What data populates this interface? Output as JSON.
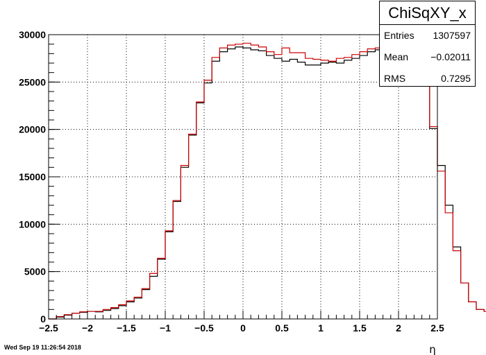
{
  "chart_data": {
    "type": "histogram",
    "title": "",
    "xlabel": "η",
    "ylabel": "",
    "xlim": [
      -2.5,
      2.5
    ],
    "ylim": [
      0,
      30000
    ],
    "grid": true,
    "bin_width": 0.1,
    "x_ticks": [
      "−2.5",
      "−2",
      "−1.5",
      "−1",
      "−0.5",
      "0",
      "0.5",
      "1",
      "1.5",
      "2",
      "2.5"
    ],
    "y_ticks": [
      "0",
      "5000",
      "10000",
      "15000",
      "20000",
      "25000",
      "30000"
    ],
    "bin_edges_start": -2.5,
    "series": [
      {
        "color": "#000000",
        "values": [
          0,
          200,
          400,
          600,
          700,
          800,
          750,
          900,
          1100,
          1400,
          1800,
          2200,
          3100,
          4500,
          6300,
          9200,
          12400,
          16000,
          19400,
          22800,
          24900,
          27200,
          28200,
          28500,
          28700,
          28600,
          28400,
          28300,
          27800,
          27500,
          27200,
          27400,
          27100,
          26800,
          26800,
          27000,
          27100,
          27000,
          27300,
          27500,
          27800,
          28200,
          28400,
          28200,
          28500,
          28400,
          28000,
          27800,
          24600,
          20100,
          16200,
          12000,
          7600,
          3800,
          1800,
          1000,
          800,
          700,
          600,
          600,
          700,
          650,
          700,
          750,
          800,
          700,
          500,
          300,
          100,
          0
        ]
      },
      {
        "color": "#cc0000",
        "values": [
          0,
          250,
          450,
          600,
          750,
          800,
          800,
          1000,
          1200,
          1500,
          1900,
          2300,
          3200,
          4800,
          6400,
          9300,
          12500,
          16200,
          19500,
          22900,
          25200,
          27600,
          28600,
          28900,
          29000,
          29100,
          28900,
          28700,
          28200,
          27900,
          28600,
          28100,
          28100,
          27500,
          27400,
          27300,
          27200,
          27500,
          27600,
          27900,
          28200,
          28500,
          28600,
          28800,
          28700,
          28600,
          28300,
          28000,
          24900,
          20300,
          15600,
          11200,
          7200,
          3800,
          1800,
          1000,
          800,
          700,
          650,
          700,
          700,
          700,
          750,
          800,
          850,
          750,
          550,
          350,
          150,
          0
        ]
      }
    ]
  },
  "stats_box": {
    "title": "ChiSqXY_x",
    "rows": [
      {
        "key": "Entries",
        "value": "1307597"
      },
      {
        "key": "Mean",
        "value": "−0.02011"
      },
      {
        "key": "RMS",
        "value": "0.7295"
      }
    ]
  },
  "timestamp": "Wed Sep 19 11:26:54 2018"
}
